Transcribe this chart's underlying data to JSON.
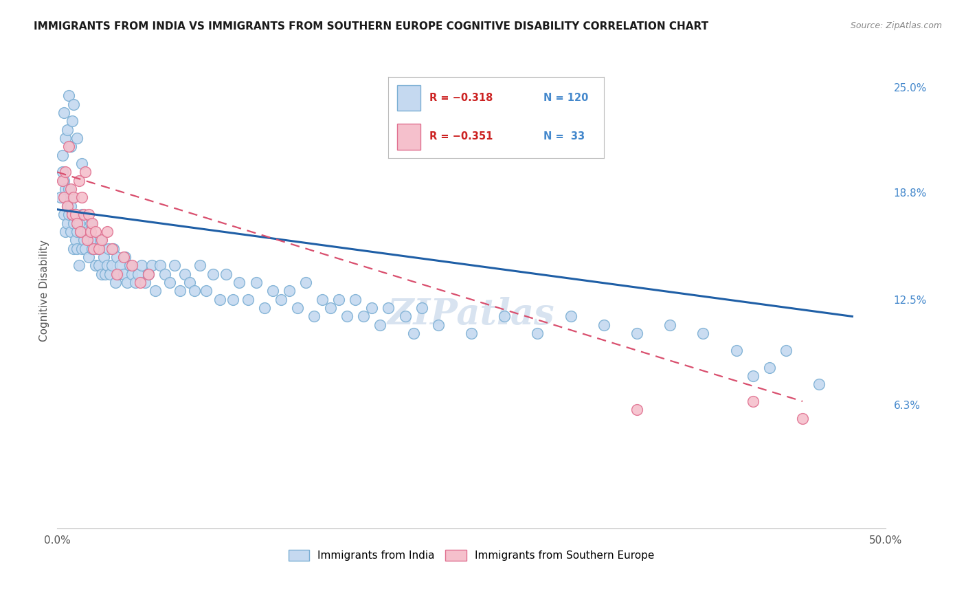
{
  "title": "IMMIGRANTS FROM INDIA VS IMMIGRANTS FROM SOUTHERN EUROPE COGNITIVE DISABILITY CORRELATION CHART",
  "source": "Source: ZipAtlas.com",
  "ylabel": "Cognitive Disability",
  "right_yticks": [
    "25.0%",
    "18.8%",
    "12.5%",
    "6.3%"
  ],
  "right_ytick_vals": [
    0.25,
    0.188,
    0.125,
    0.063
  ],
  "xlim": [
    0.0,
    0.5
  ],
  "ylim": [
    -0.01,
    0.27
  ],
  "series1_label": "Immigrants from India",
  "series2_label": "Immigrants from Southern Europe",
  "legend_r1": "R = −0.318",
  "legend_n1": "N = 120",
  "legend_r2": "R = −0.351",
  "legend_n2": "N =  33",
  "color_blue_fill": "#c5d9f0",
  "color_blue_edge": "#7bafd4",
  "color_blue_line": "#1f5fa6",
  "color_pink_fill": "#f5c0cc",
  "color_pink_edge": "#e07090",
  "color_pink_line": "#d94f6e",
  "color_right_axis": "#4488cc",
  "color_legend_r": "#cc2222",
  "background": "#ffffff",
  "grid_color": "#d8d8d8",
  "india_x": [
    0.002,
    0.003,
    0.004,
    0.004,
    0.005,
    0.005,
    0.006,
    0.006,
    0.007,
    0.007,
    0.008,
    0.008,
    0.009,
    0.009,
    0.01,
    0.01,
    0.011,
    0.011,
    0.012,
    0.012,
    0.013,
    0.013,
    0.014,
    0.015,
    0.015,
    0.016,
    0.017,
    0.018,
    0.019,
    0.02,
    0.021,
    0.022,
    0.023,
    0.024,
    0.025,
    0.026,
    0.027,
    0.028,
    0.029,
    0.03,
    0.031,
    0.032,
    0.033,
    0.034,
    0.035,
    0.036,
    0.037,
    0.038,
    0.04,
    0.041,
    0.042,
    0.044,
    0.045,
    0.047,
    0.049,
    0.051,
    0.053,
    0.055,
    0.057,
    0.059,
    0.062,
    0.065,
    0.068,
    0.071,
    0.074,
    0.077,
    0.08,
    0.083,
    0.086,
    0.09,
    0.094,
    0.098,
    0.102,
    0.106,
    0.11,
    0.115,
    0.12,
    0.125,
    0.13,
    0.135,
    0.14,
    0.145,
    0.15,
    0.155,
    0.16,
    0.165,
    0.17,
    0.175,
    0.18,
    0.185,
    0.19,
    0.195,
    0.2,
    0.21,
    0.215,
    0.22,
    0.23,
    0.25,
    0.27,
    0.29,
    0.31,
    0.33,
    0.35,
    0.37,
    0.39,
    0.41,
    0.42,
    0.43,
    0.44,
    0.46,
    0.003,
    0.004,
    0.005,
    0.006,
    0.007,
    0.008,
    0.009,
    0.01,
    0.012,
    0.015
  ],
  "india_y": [
    0.185,
    0.2,
    0.195,
    0.175,
    0.19,
    0.165,
    0.18,
    0.17,
    0.19,
    0.175,
    0.18,
    0.165,
    0.175,
    0.185,
    0.17,
    0.155,
    0.175,
    0.16,
    0.165,
    0.155,
    0.17,
    0.145,
    0.165,
    0.175,
    0.155,
    0.16,
    0.155,
    0.165,
    0.15,
    0.17,
    0.155,
    0.16,
    0.145,
    0.155,
    0.145,
    0.16,
    0.14,
    0.15,
    0.14,
    0.145,
    0.155,
    0.14,
    0.145,
    0.155,
    0.135,
    0.15,
    0.14,
    0.145,
    0.14,
    0.15,
    0.135,
    0.145,
    0.14,
    0.135,
    0.14,
    0.145,
    0.135,
    0.14,
    0.145,
    0.13,
    0.145,
    0.14,
    0.135,
    0.145,
    0.13,
    0.14,
    0.135,
    0.13,
    0.145,
    0.13,
    0.14,
    0.125,
    0.14,
    0.125,
    0.135,
    0.125,
    0.135,
    0.12,
    0.13,
    0.125,
    0.13,
    0.12,
    0.135,
    0.115,
    0.125,
    0.12,
    0.125,
    0.115,
    0.125,
    0.115,
    0.12,
    0.11,
    0.12,
    0.115,
    0.105,
    0.12,
    0.11,
    0.105,
    0.115,
    0.105,
    0.115,
    0.11,
    0.105,
    0.11,
    0.105,
    0.095,
    0.08,
    0.085,
    0.095,
    0.075,
    0.21,
    0.235,
    0.22,
    0.225,
    0.245,
    0.215,
    0.23,
    0.24,
    0.22,
    0.205
  ],
  "se_x": [
    0.003,
    0.004,
    0.005,
    0.006,
    0.007,
    0.008,
    0.009,
    0.01,
    0.011,
    0.012,
    0.013,
    0.014,
    0.015,
    0.016,
    0.017,
    0.018,
    0.019,
    0.02,
    0.021,
    0.022,
    0.023,
    0.025,
    0.027,
    0.03,
    0.033,
    0.036,
    0.04,
    0.045,
    0.05,
    0.055,
    0.35,
    0.42,
    0.45
  ],
  "se_y": [
    0.195,
    0.185,
    0.2,
    0.18,
    0.215,
    0.19,
    0.175,
    0.185,
    0.175,
    0.17,
    0.195,
    0.165,
    0.185,
    0.175,
    0.2,
    0.16,
    0.175,
    0.165,
    0.17,
    0.155,
    0.165,
    0.155,
    0.16,
    0.165,
    0.155,
    0.14,
    0.15,
    0.145,
    0.135,
    0.14,
    0.06,
    0.065,
    0.055
  ]
}
